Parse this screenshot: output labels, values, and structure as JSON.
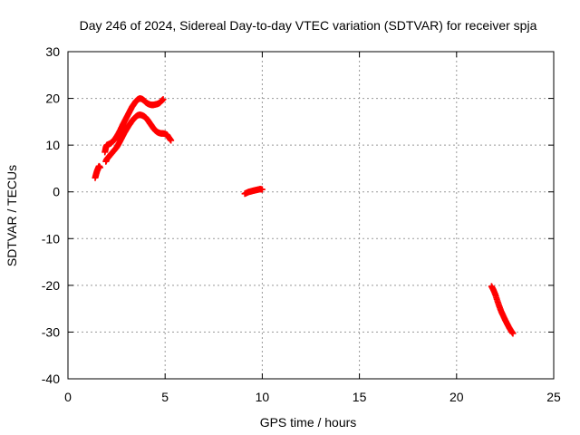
{
  "chart_data": {
    "type": "scatter",
    "title": "Day 246 of 2024, Sidereal Day-to-day VTEC variation (SDTVAR) for receiver spja",
    "xlabel": "GPS time / hours",
    "ylabel": "SDTVAR / TECUs",
    "xlim": [
      0,
      25
    ],
    "ylim": [
      -40,
      30
    ],
    "x_ticks": [
      0,
      5,
      10,
      15,
      20,
      25
    ],
    "y_ticks": [
      -40,
      -30,
      -20,
      -10,
      0,
      10,
      20,
      30
    ],
    "grid": true,
    "legend": "none",
    "series": [
      {
        "color": "#ff0000",
        "marker": "plus",
        "x": [
          1.4,
          1.45,
          1.5,
          1.55,
          1.6,
          1.65
        ],
        "y": [
          3.0,
          3.8,
          4.5,
          5.0,
          5.5,
          5.2
        ]
      },
      {
        "color": "#ff0000",
        "marker": "plus",
        "x": [
          1.9,
          1.95,
          2.0,
          2.1,
          2.2,
          2.3,
          2.4,
          2.5,
          2.6,
          2.7,
          2.8,
          2.9,
          3.0,
          3.1,
          3.2,
          3.3,
          3.4,
          3.5,
          3.6,
          3.7,
          3.8,
          3.9,
          4.0,
          4.1,
          4.2,
          4.3,
          4.4,
          4.5,
          4.6,
          4.7,
          4.8,
          4.9
        ],
        "y": [
          8.5,
          9.5,
          10.0,
          10.2,
          10.4,
          10.8,
          11.2,
          11.8,
          12.5,
          13.3,
          14.2,
          15.0,
          15.8,
          16.6,
          17.4,
          18.2,
          18.8,
          19.4,
          19.8,
          20.0,
          19.9,
          19.6,
          19.2,
          18.9,
          18.7,
          18.6,
          18.6,
          18.7,
          18.8,
          19.0,
          19.4,
          19.8
        ]
      },
      {
        "color": "#ff0000",
        "marker": "plus",
        "x": [
          1.95,
          2.0,
          2.1,
          2.2,
          2.3,
          2.4,
          2.5,
          2.6,
          2.7,
          2.8,
          2.9,
          3.0,
          3.1,
          3.2,
          3.3,
          3.4,
          3.5,
          3.6,
          3.7,
          3.8,
          3.9,
          4.0,
          4.1,
          4.2,
          4.3,
          4.4,
          4.5,
          4.6,
          4.7,
          4.8,
          4.9,
          5.0,
          5.1,
          5.2,
          5.3
        ],
        "y": [
          6.5,
          7.0,
          7.5,
          8.0,
          8.5,
          9.0,
          9.5,
          10.2,
          11.0,
          11.8,
          12.6,
          13.3,
          14.0,
          14.6,
          15.2,
          15.7,
          16.1,
          16.4,
          16.5,
          16.4,
          16.2,
          15.9,
          15.4,
          14.8,
          14.2,
          13.6,
          13.1,
          12.8,
          12.6,
          12.5,
          12.5,
          12.4,
          12.2,
          11.6,
          11.0
        ]
      },
      {
        "color": "#ff0000",
        "marker": "plus",
        "x": [
          9.1,
          9.2,
          9.3,
          9.4,
          9.5,
          9.6,
          9.7,
          9.8,
          9.9,
          10.0
        ],
        "y": [
          -0.4,
          -0.2,
          0.0,
          0.1,
          0.2,
          0.3,
          0.4,
          0.5,
          0.6,
          0.5
        ]
      },
      {
        "color": "#ff0000",
        "marker": "plus",
        "x": [
          21.8,
          21.9,
          22.0,
          22.1,
          22.2,
          22.3,
          22.4,
          22.5,
          22.6,
          22.7,
          22.8,
          22.9
        ],
        "y": [
          -20.2,
          -21.0,
          -22.0,
          -23.3,
          -24.5,
          -25.6,
          -26.5,
          -27.4,
          -28.2,
          -29.0,
          -29.7,
          -30.3
        ]
      }
    ]
  }
}
